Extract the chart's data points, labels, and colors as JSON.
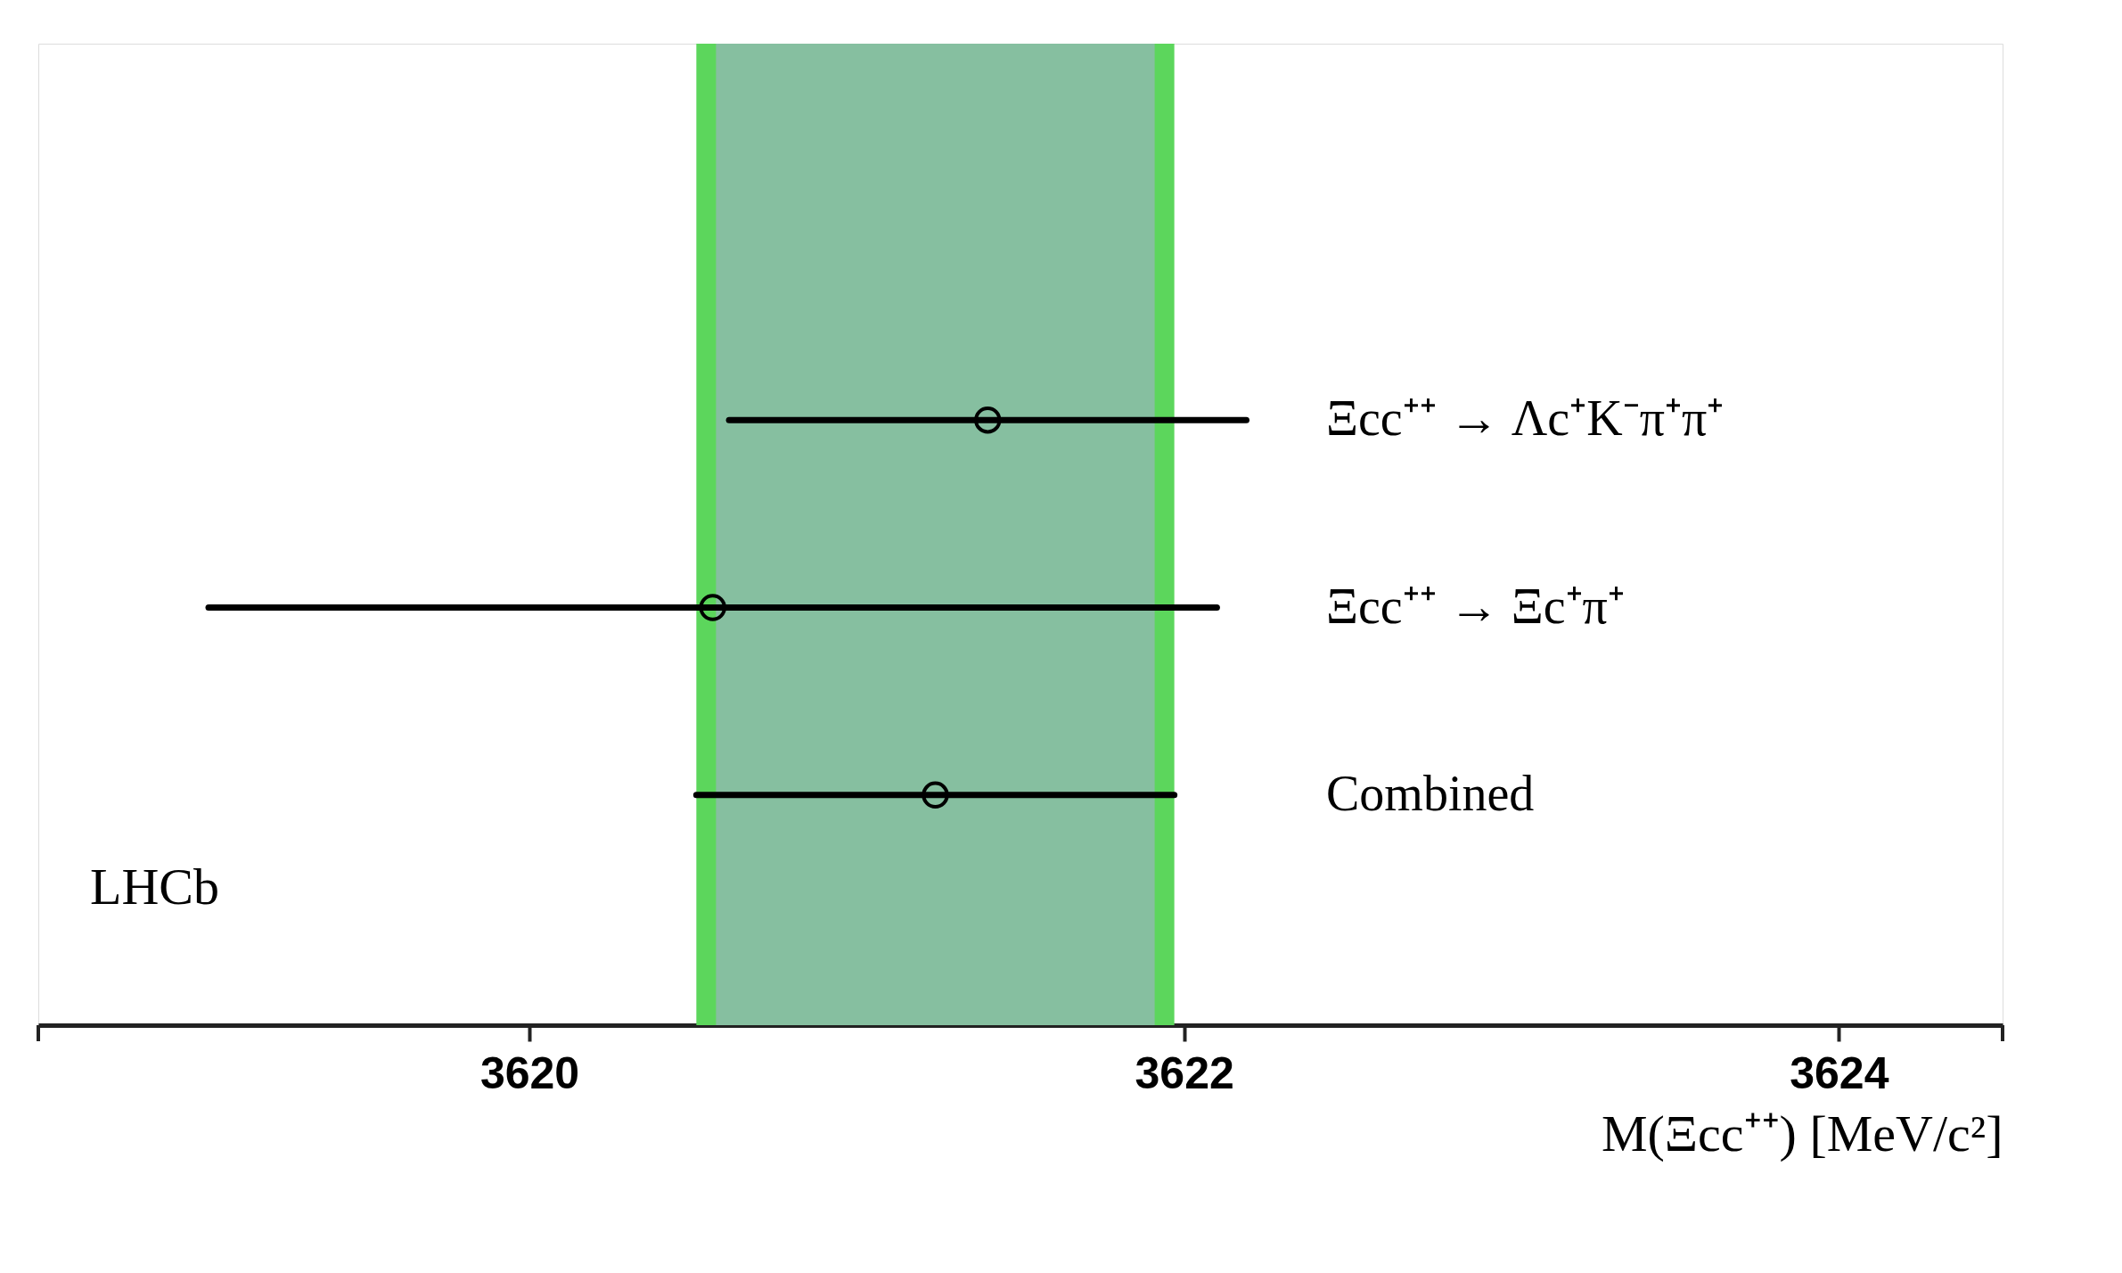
{
  "chart_data": {
    "type": "scatter",
    "orientation": "horizontal",
    "categories": [
      "Ξcc⁺⁺ → Λc⁺K⁻π⁺π⁺",
      "Ξcc⁺⁺ → Ξc⁺π⁺",
      "Combined"
    ],
    "values": [
      3621.4,
      3620.56,
      3621.24
    ],
    "errors": [
      0.79,
      1.54,
      0.73
    ],
    "color": "#000000",
    "marker": "circle",
    "xlim": [
      3618.5,
      3624.5
    ],
    "xticks": [
      {
        "value": 3618.5,
        "label": null
      },
      3620,
      3622,
      3624,
      {
        "value": 3624.5,
        "label": null
      }
    ],
    "xlabel": "M(Ξcc⁺⁺) [MeV/c²]",
    "bands": [
      {
        "axis": "x",
        "from": 3620.51,
        "to": 3621.97,
        "color": "#5cd65c"
      },
      {
        "axis": "x",
        "from": 3620.57,
        "to": 3621.91,
        "color": "#86bfa0"
      }
    ],
    "annotations": [
      "LHCb"
    ]
  }
}
